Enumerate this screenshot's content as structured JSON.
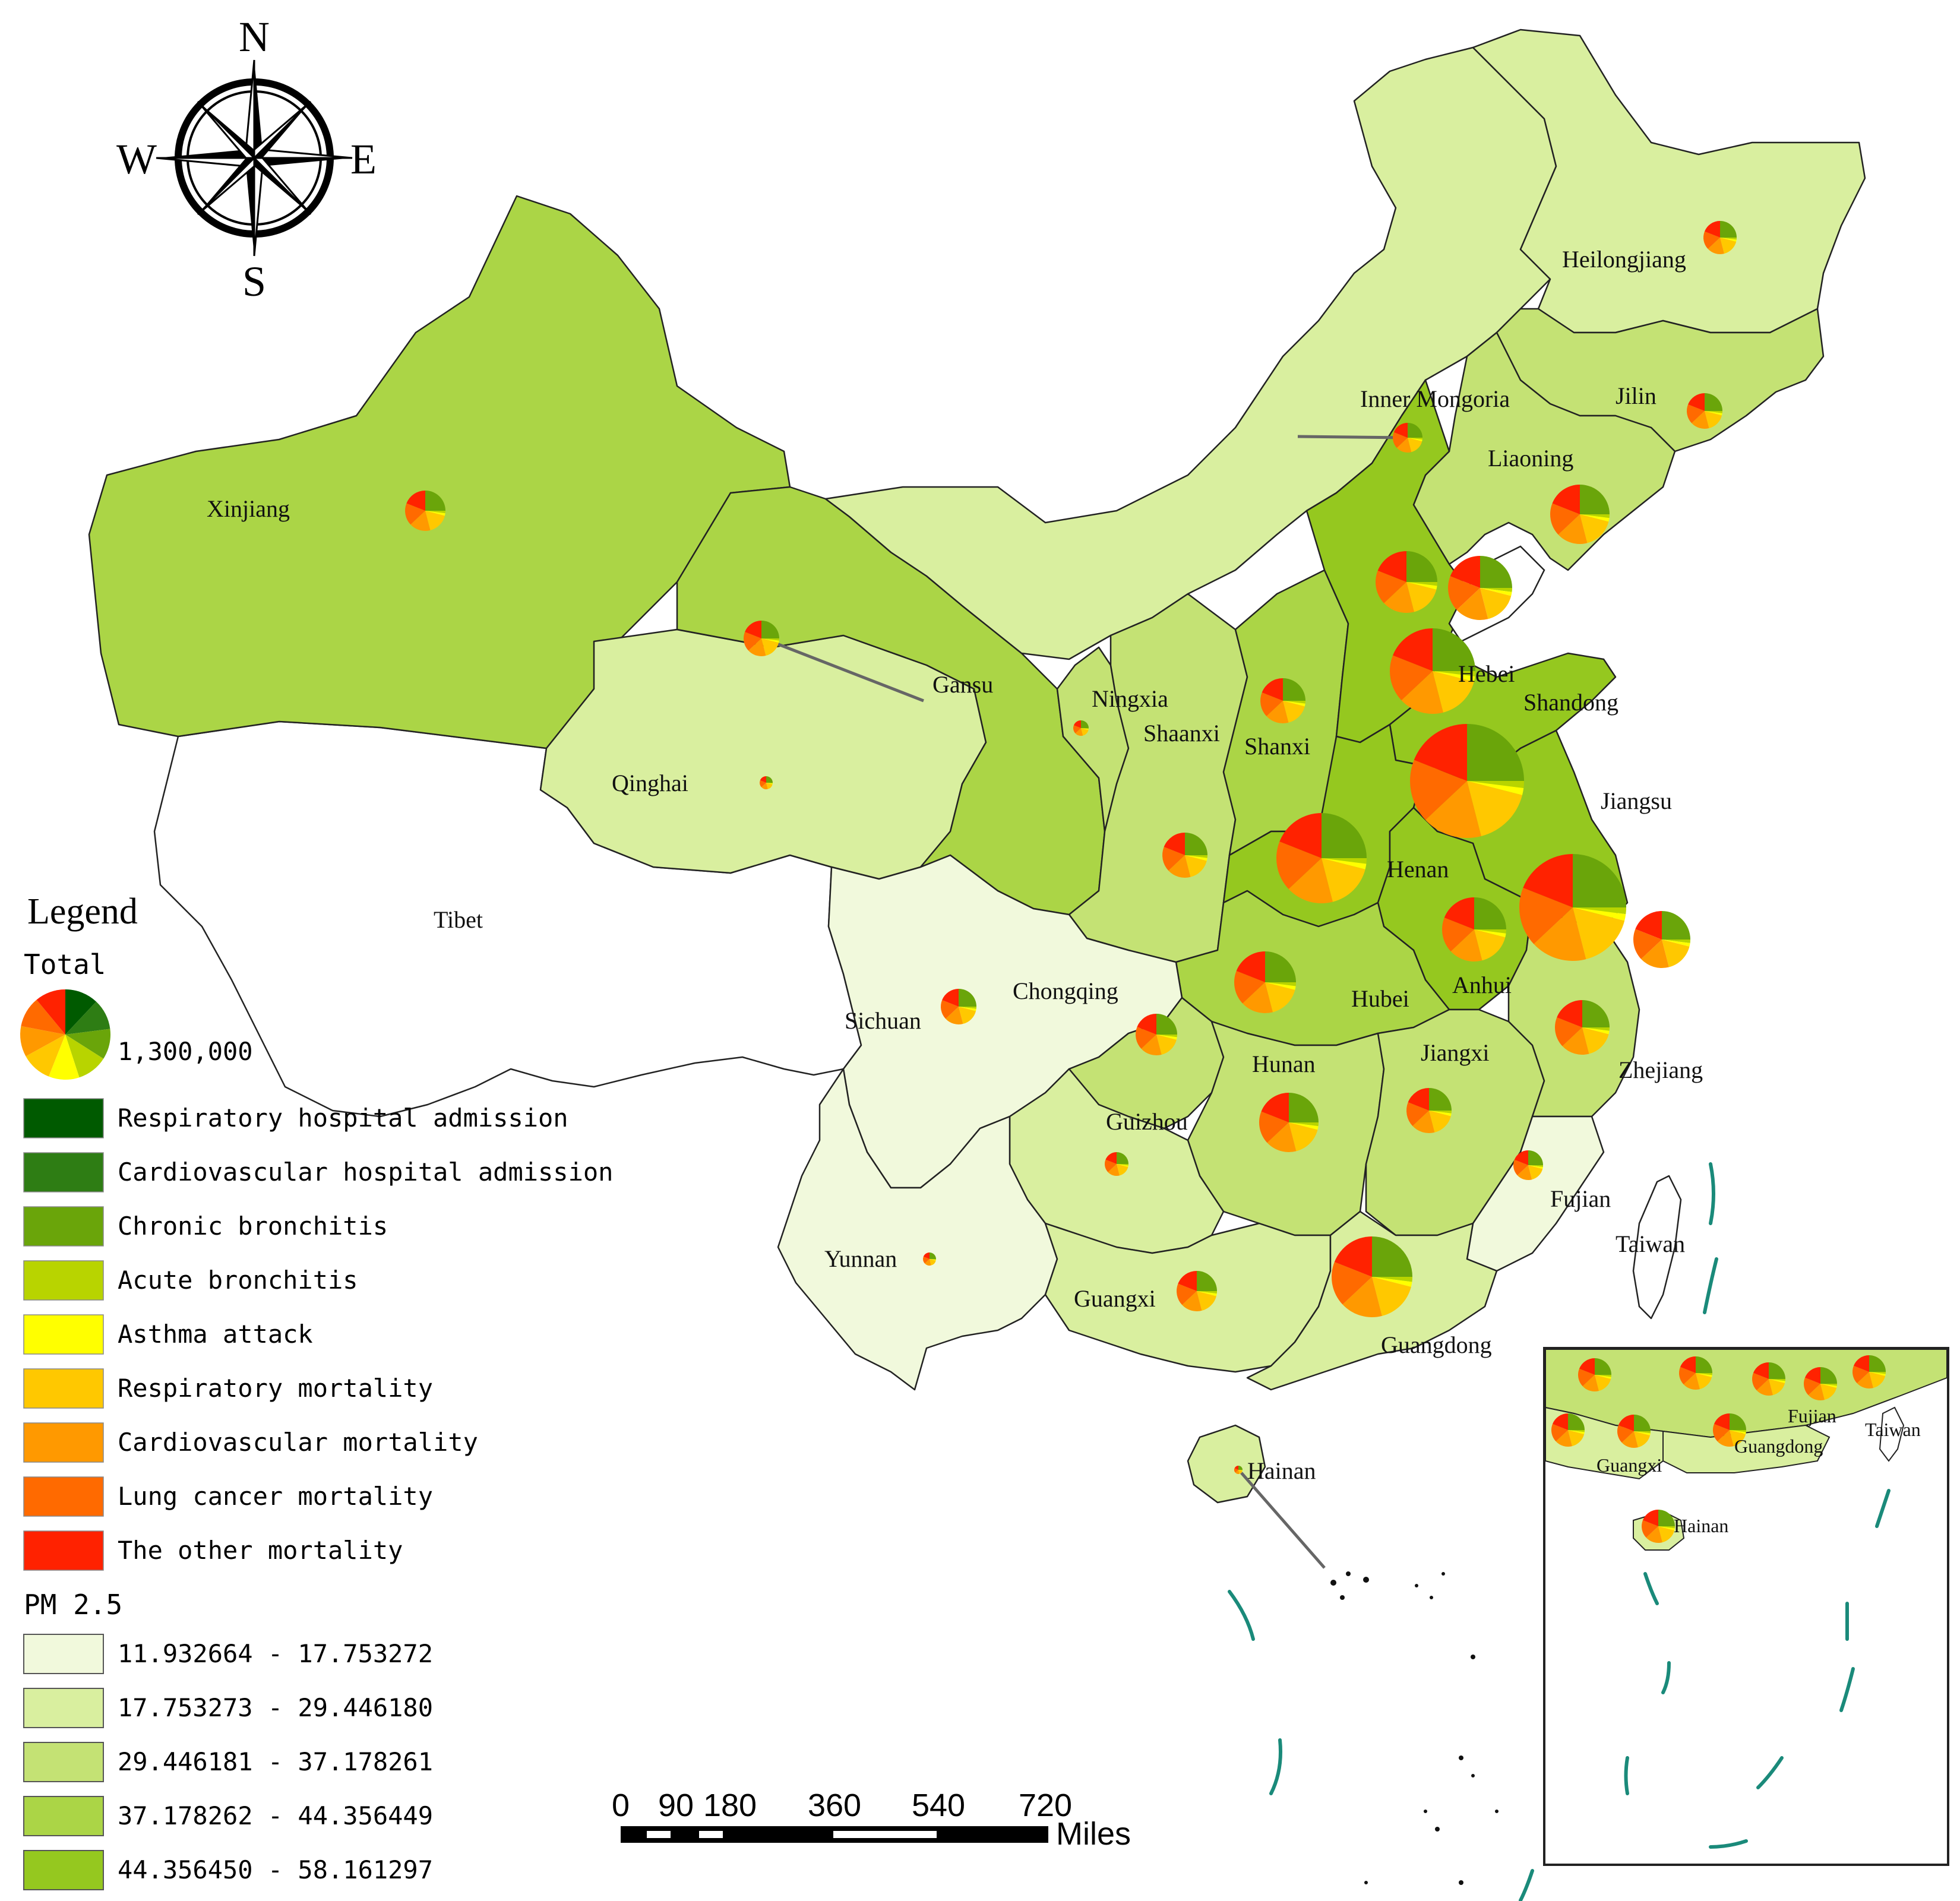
{
  "compass": {
    "n": "N",
    "s": "S",
    "e": "E",
    "w": "W"
  },
  "colors": {
    "pm_class_1": "#f1f9dc",
    "pm_class_2": "#d9ef9f",
    "pm_class_3": "#c4e274",
    "pm_class_4": "#abd546",
    "pm_class_5": "#95c81f",
    "no_data": "#ffffff",
    "leader_line": "#666666",
    "maritime_line": "#1a8a7a"
  },
  "legend": {
    "title": "Legend",
    "total_label": "Total",
    "total_value": "1,300,000",
    "categories": [
      {
        "label": "Respiratory hospital admission",
        "color": "#005a00"
      },
      {
        "label": "Cardiovascular hospital admission",
        "color": "#2e7d14"
      },
      {
        "label": "Chronic bronchitis",
        "color": "#6aa50a"
      },
      {
        "label": "Acute bronchitis",
        "color": "#b8d400"
      },
      {
        "label": "Asthma attack",
        "color": "#ffff00"
      },
      {
        "label": "Respiratory mortality",
        "color": "#ffc800"
      },
      {
        "label": "Cardiovascular mortality",
        "color": "#ff9900"
      },
      {
        "label": "Lung cancer mortality",
        "color": "#ff6a00"
      },
      {
        "label": "The other mortality",
        "color": "#ff2200"
      }
    ],
    "pm_title": "PM 2.5",
    "pm_classes": [
      {
        "label": "11.932664 - 17.753272",
        "color": "#f1f9dc"
      },
      {
        "label": "17.753273 - 29.446180",
        "color": "#d9ef9f"
      },
      {
        "label": "29.446181 - 37.178261",
        "color": "#c4e274"
      },
      {
        "label": "37.178262 - 44.356449",
        "color": "#abd546"
      },
      {
        "label": "44.356450 - 58.161297",
        "color": "#95c81f"
      }
    ]
  },
  "scale_bar": {
    "ticks": [
      "0",
      "90",
      "180",
      "360",
      "540",
      "720"
    ],
    "unit": "Miles"
  },
  "provinces": {
    "heilongjiang": "Heilongjiang",
    "jilin": "Jilin",
    "liaoning": "Liaoning",
    "inner_mongolia": "Inner Mongoria",
    "xinjiang": "Xinjiang",
    "tibet": "Tibet",
    "qinghai": "Qinghai",
    "gansu": "Gansu",
    "ningxia": "Ningxia",
    "shaanxi": "Shaanxi",
    "shanxi": "Shanxi",
    "hebei": "Hebei",
    "shandong": "Shandong",
    "jiangsu": "Jiangsu",
    "henan": "Henan",
    "anhui": "Anhui",
    "hubei": "Hubei",
    "sichuan": "Sichuan",
    "chongqing": "Chongqing",
    "hunan": "Hunan",
    "jiangxi": "Jiangxi",
    "zhejiang": "Zhejiang",
    "guizhou": "Guizhou",
    "fujian": "Fujian",
    "taiwan": "Taiwan",
    "yunnan": "Yunnan",
    "guangxi": "Guangxi",
    "guangdong": "Guangdong",
    "hainan": "Hainan"
  },
  "inset_labels": {
    "fujian": "Fujian",
    "taiwan": "Taiwan",
    "guangxi": "Guangxi",
    "guangdong": "Guangdong",
    "hainan": "Hainan"
  }
}
